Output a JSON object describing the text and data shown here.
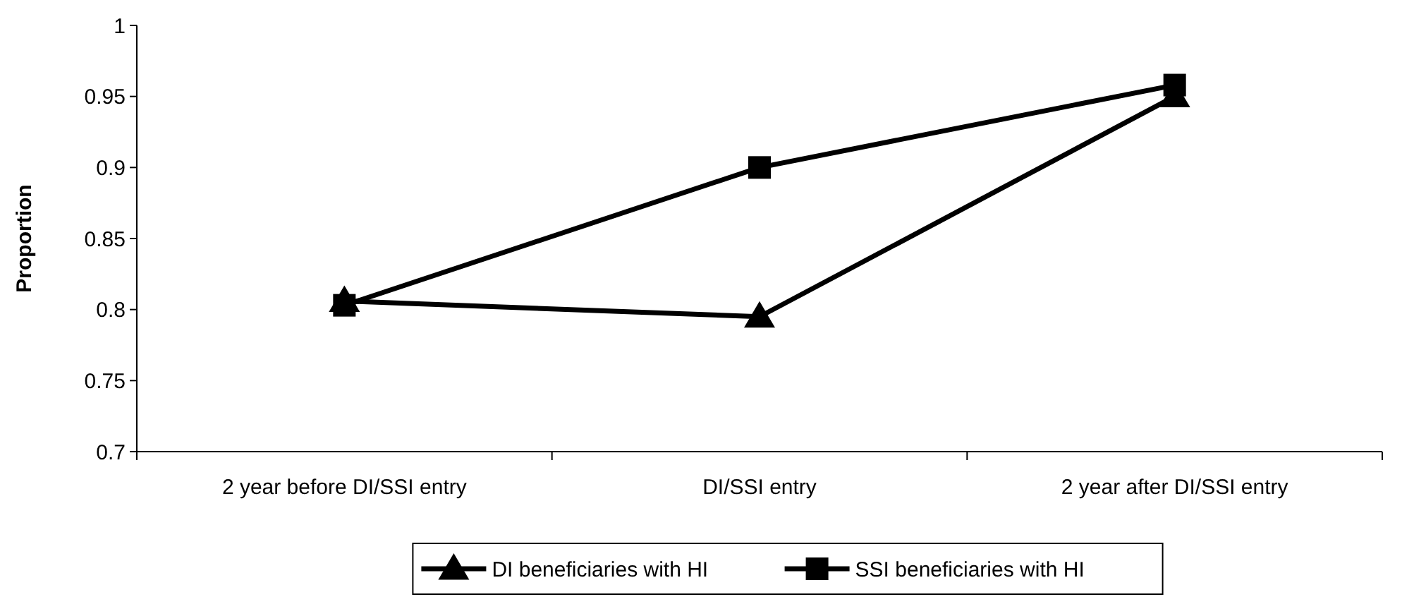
{
  "chart_data": {
    "type": "line",
    "ylabel": "Proportion",
    "categories": [
      "2 year before DI/SSI entry",
      "DI/SSI entry",
      "2 year after DI/SSI entry"
    ],
    "ylim": [
      0.7,
      1
    ],
    "yticks": [
      0.7,
      0.75,
      0.8,
      0.85,
      0.9,
      0.95,
      1
    ],
    "grid": false,
    "legend": "bottom",
    "line_style": "solid",
    "series": [
      {
        "name": "DI beneficiaries with HI",
        "color": "#000000",
        "marker": "triangle",
        "values": [
          0.806,
          0.795,
          0.95
        ]
      },
      {
        "name": "SSI beneficiaries with HI",
        "color": "#000000",
        "marker": "square",
        "values": [
          0.803,
          0.9,
          0.958
        ]
      }
    ]
  }
}
